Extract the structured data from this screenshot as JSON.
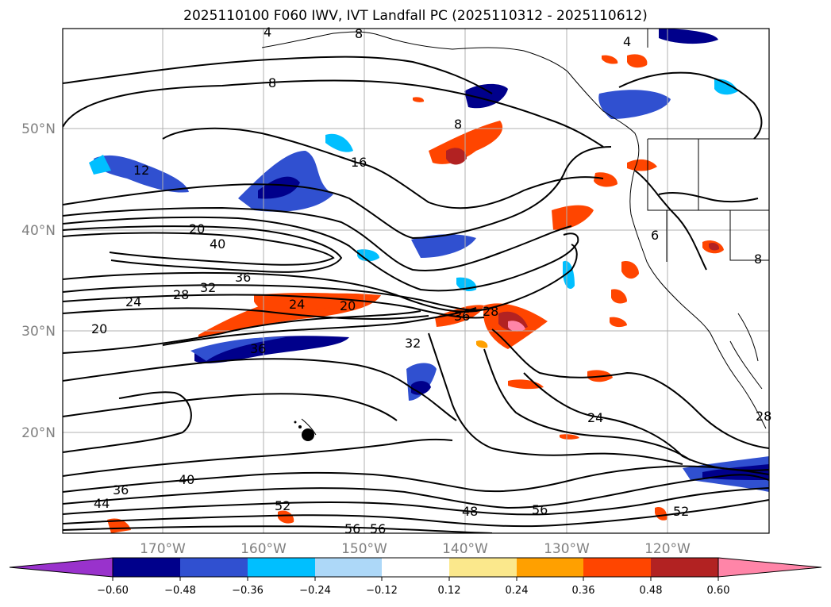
{
  "title": "2025110100 F060 IWV, IVT Landfall PC (2025110312 - 2025110612)",
  "map": {
    "lon_ticks": [
      "170°W",
      "160°W",
      "150°W",
      "140°W",
      "130°W",
      "120°W"
    ],
    "lat_ticks": [
      "50°N",
      "40°N",
      "30°N",
      "20°N"
    ],
    "iwv_contour_labels": [
      "4",
      "8",
      "8",
      "4",
      "8",
      "12",
      "16",
      "20",
      "40",
      "36",
      "32",
      "28",
      "24",
      "20",
      "24",
      "20",
      "36",
      "28",
      "32",
      "36",
      "24",
      "6",
      "8",
      "28",
      "40",
      "36",
      "44",
      "52",
      "56",
      "56",
      "48",
      "56",
      "52"
    ]
  },
  "colorbar": {
    "ticks": [
      "−0.60",
      "−0.48",
      "−0.36",
      "−0.24",
      "−0.12",
      "0.12",
      "0.24",
      "0.36",
      "0.48",
      "0.60"
    ],
    "colors": [
      "#9932cc",
      "#00008b",
      "#3050d0",
      "#00bfff",
      "#add8f8",
      "#ffffff",
      "#fbe88c",
      "#ffa000",
      "#ff4500",
      "#b22222",
      "#ff85a8"
    ]
  }
}
